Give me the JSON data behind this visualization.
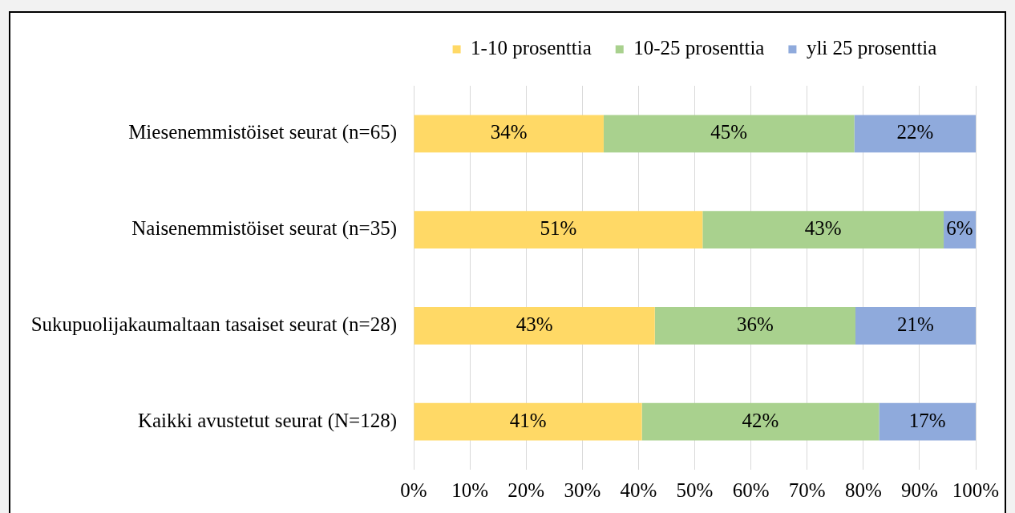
{
  "chart_data": {
    "type": "bar",
    "orientation": "horizontal",
    "stacked": true,
    "categories": [
      "Miesenemmistöiset seurat (n=65)",
      "Naisenemmistöiset seurat (n=35)",
      "Sukupuolijakaumaltaan tasaiset seurat (n=28)",
      "Kaikki avustetut seurat (N=128)"
    ],
    "series": [
      {
        "name": "1-10 prosenttia",
        "color": "#ffd966",
        "values": [
          33.8,
          51.4,
          42.9,
          40.6
        ],
        "value_labels": [
          "34%",
          "51%",
          "43%",
          "41%"
        ]
      },
      {
        "name": "10-25 prosenttia",
        "color": "#a9d18e",
        "values": [
          44.6,
          42.9,
          35.7,
          42.2
        ],
        "value_labels": [
          "45%",
          "43%",
          "36%",
          "42%"
        ]
      },
      {
        "name": "yli 25 prosenttia",
        "color": "#8faadc",
        "values": [
          21.6,
          5.7,
          21.4,
          17.2
        ],
        "value_labels": [
          "22%",
          "6%",
          "21%",
          "17%"
        ]
      }
    ],
    "xlim": [
      0,
      100
    ],
    "xticks": [
      {
        "value": 0,
        "label": "0%"
      },
      {
        "value": 10,
        "label": "10%"
      },
      {
        "value": 20,
        "label": "20%"
      },
      {
        "value": 30,
        "label": "30%"
      },
      {
        "value": 40,
        "label": "40%"
      },
      {
        "value": 50,
        "label": "50%"
      },
      {
        "value": 60,
        "label": "60%"
      },
      {
        "value": 70,
        "label": "70%"
      },
      {
        "value": 80,
        "label": "80%"
      },
      {
        "value": 90,
        "label": "90%"
      },
      {
        "value": 100,
        "label": "100%"
      }
    ],
    "grid": "x",
    "legend": "top"
  }
}
